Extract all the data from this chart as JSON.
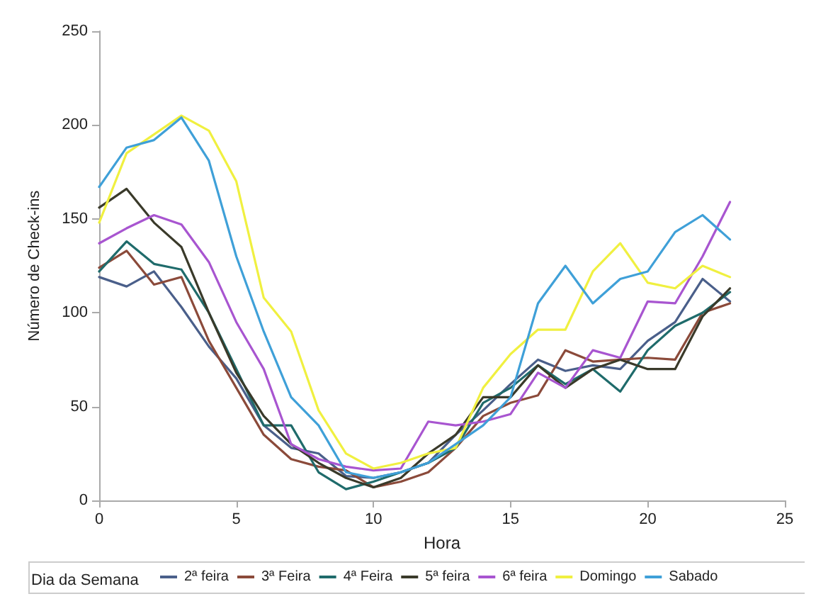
{
  "chart_data": {
    "type": "line",
    "xlabel": "Hora",
    "ylabel": "Número de Check-ins",
    "legend_title": "Dia da Semana",
    "legend": "bottom",
    "grid": false,
    "line_style": "solid",
    "marker": "none",
    "x": [
      0,
      1,
      2,
      3,
      4,
      5,
      6,
      7,
      8,
      9,
      10,
      11,
      12,
      13,
      14,
      15,
      16,
      17,
      18,
      19,
      20,
      21,
      22,
      23
    ],
    "xlim": [
      0,
      25
    ],
    "xticks": [
      0,
      5,
      10,
      15,
      20,
      25
    ],
    "ylim": [
      0,
      250
    ],
    "yticks": [
      0,
      50,
      100,
      150,
      200,
      250
    ],
    "series": [
      {
        "name": "2ª feira",
        "color": "#4a5f8a",
        "values": [
          119,
          114,
          122,
          103,
          82,
          65,
          40,
          28,
          25,
          13,
          12,
          15,
          20,
          35,
          48,
          62,
          75,
          69,
          72,
          70,
          85,
          95,
          118,
          106
        ]
      },
      {
        "name": "3ª Feira",
        "color": "#8b4a3a",
        "values": [
          124,
          133,
          115,
          119,
          85,
          60,
          35,
          22,
          18,
          16,
          7,
          10,
          15,
          28,
          45,
          52,
          56,
          80,
          74,
          75,
          76,
          75,
          100,
          105
        ]
      },
      {
        "name": "4ª Feira",
        "color": "#1f6b6b",
        "values": [
          122,
          138,
          126,
          123,
          100,
          70,
          40,
          40,
          15,
          6,
          10,
          15,
          20,
          28,
          52,
          60,
          72,
          62,
          70,
          58,
          80,
          93,
          100,
          111
        ]
      },
      {
        "name": "5ª feira",
        "color": "#3a3a2a",
        "values": [
          156,
          166,
          148,
          135,
          100,
          68,
          45,
          30,
          20,
          12,
          7,
          12,
          25,
          35,
          55,
          55,
          72,
          60,
          70,
          75,
          70,
          70,
          98,
          113
        ]
      },
      {
        "name": "6ª feira",
        "color": "#a855d0",
        "values": [
          137,
          145,
          152,
          147,
          127,
          95,
          70,
          30,
          22,
          18,
          16,
          17,
          42,
          40,
          42,
          46,
          68,
          60,
          80,
          76,
          106,
          105,
          130,
          159
        ]
      },
      {
        "name": "Domingo",
        "color": "#f0f040",
        "values": [
          148,
          185,
          195,
          205,
          197,
          170,
          108,
          90,
          48,
          25,
          17,
          20,
          25,
          28,
          60,
          78,
          91,
          91,
          122,
          137,
          116,
          113,
          125,
          119
        ]
      },
      {
        "name": "Sabado",
        "color": "#3fa0d8",
        "values": [
          167,
          188,
          192,
          204,
          181,
          130,
          90,
          55,
          40,
          15,
          12,
          15,
          20,
          30,
          40,
          55,
          105,
          125,
          105,
          118,
          122,
          143,
          152,
          139
        ]
      }
    ]
  }
}
